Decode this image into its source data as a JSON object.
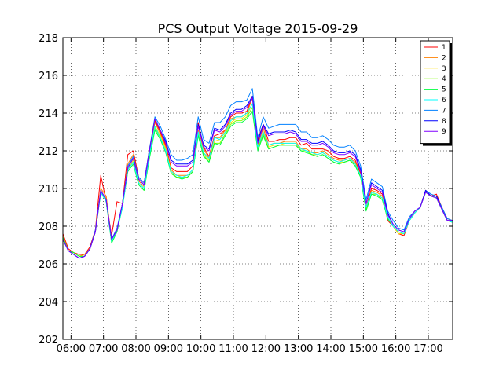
{
  "chart_data": {
    "type": "line",
    "title": "PCS Output Voltage 2015-09-29",
    "xlabel": "",
    "ylabel": "",
    "ylim": [
      202,
      218
    ],
    "yticks": [
      202,
      204,
      206,
      208,
      210,
      212,
      214,
      216,
      218
    ],
    "xlim": [
      "05:45",
      "17:45"
    ],
    "xticks": [
      "06:00",
      "07:00",
      "08:00",
      "09:00",
      "10:00",
      "11:00",
      "12:00",
      "13:00",
      "14:00",
      "15:00",
      "16:00",
      "17:00"
    ],
    "grid": true,
    "legend_position": "top-right",
    "x": [
      "05:45",
      "05:55",
      "06:05",
      "06:15",
      "06:25",
      "06:35",
      "06:45",
      "06:55",
      "07:05",
      "07:15",
      "07:25",
      "07:35",
      "07:45",
      "07:55",
      "08:05",
      "08:15",
      "08:25",
      "08:35",
      "08:45",
      "08:55",
      "09:05",
      "09:15",
      "09:25",
      "09:35",
      "09:45",
      "09:55",
      "10:05",
      "10:15",
      "10:25",
      "10:35",
      "10:45",
      "10:55",
      "11:05",
      "11:15",
      "11:25",
      "11:35",
      "11:45",
      "11:55",
      "12:05",
      "12:15",
      "12:25",
      "12:35",
      "12:45",
      "12:55",
      "13:05",
      "13:15",
      "13:25",
      "13:35",
      "13:45",
      "13:55",
      "14:05",
      "14:15",
      "14:25",
      "14:35",
      "14:45",
      "14:55",
      "15:05",
      "15:15",
      "15:25",
      "15:35",
      "15:45",
      "15:55",
      "16:05",
      "16:15",
      "16:25",
      "16:35",
      "16:45",
      "16:55",
      "17:05",
      "17:15",
      "17:25",
      "17:35",
      "17:45"
    ],
    "series": [
      {
        "name": "1",
        "color": "#ff0000",
        "values": [
          207.6,
          206.8,
          206.6,
          206.5,
          206.5,
          206.9,
          207.8,
          210.7,
          209.3,
          207.5,
          209.3,
          209.2,
          211.8,
          212.0,
          210.6,
          210.3,
          212.1,
          213.6,
          213.0,
          212.3,
          211.1,
          210.9,
          210.9,
          210.9,
          211.2,
          213.5,
          212.2,
          211.7,
          212.8,
          212.9,
          213.1,
          213.8,
          214.0,
          214.0,
          214.1,
          214.9,
          212.6,
          213.4,
          212.5,
          212.5,
          212.6,
          212.6,
          212.7,
          212.7,
          212.3,
          212.4,
          212.1,
          212.1,
          212.1,
          212.0,
          211.7,
          211.6,
          211.6,
          211.7,
          211.5,
          210.8,
          209.0,
          210.0,
          209.9,
          209.7,
          208.3,
          208.0,
          207.6,
          207.5,
          208.3,
          208.7,
          209.0,
          209.9,
          209.6,
          209.7,
          209.0,
          208.4,
          208.3
        ]
      },
      {
        "name": "2",
        "color": "#ff8000",
        "values": [
          207.5,
          206.7,
          206.6,
          206.4,
          206.5,
          206.8,
          207.7,
          210.0,
          209.6,
          207.3,
          207.8,
          209.2,
          211.3,
          211.8,
          210.4,
          210.1,
          212.0,
          213.5,
          212.9,
          212.2,
          211.0,
          210.7,
          210.7,
          210.7,
          211.0,
          213.1,
          212.1,
          211.6,
          212.7,
          212.7,
          213.1,
          213.7,
          213.8,
          213.8,
          214.0,
          214.8,
          212.3,
          213.2,
          212.3,
          212.4,
          212.4,
          212.5,
          212.5,
          212.5,
          212.1,
          212.1,
          211.9,
          211.9,
          212.0,
          211.8,
          211.6,
          211.5,
          211.5,
          211.6,
          211.4,
          210.7,
          208.9,
          209.9,
          209.8,
          209.6,
          208.4,
          208.0,
          207.6,
          207.6,
          208.3,
          208.7,
          209.0,
          209.9,
          209.6,
          209.6,
          208.9,
          208.3,
          208.3
        ]
      },
      {
        "name": "3",
        "color": "#ffe000",
        "values": [
          207.4,
          206.7,
          206.6,
          206.4,
          206.4,
          206.8,
          207.7,
          209.8,
          209.4,
          207.3,
          207.8,
          209.1,
          211.0,
          211.5,
          210.3,
          210.0,
          211.8,
          213.3,
          212.8,
          212.1,
          210.9,
          210.6,
          210.6,
          210.6,
          210.9,
          213.0,
          211.9,
          211.5,
          212.5,
          212.6,
          213.0,
          213.5,
          213.7,
          213.7,
          213.9,
          214.5,
          212.2,
          213.0,
          212.2,
          212.3,
          212.3,
          212.4,
          212.4,
          212.4,
          212.0,
          212.0,
          211.8,
          211.8,
          211.9,
          211.7,
          211.5,
          211.4,
          211.4,
          211.5,
          211.3,
          210.6,
          208.9,
          209.8,
          209.7,
          209.5,
          208.4,
          208.0,
          207.6,
          207.6,
          208.3,
          208.7,
          209.0,
          209.8,
          209.6,
          209.5,
          208.9,
          208.3,
          208.2
        ]
      },
      {
        "name": "4",
        "color": "#80ff00",
        "values": [
          207.4,
          206.7,
          206.6,
          206.4,
          206.4,
          206.8,
          207.7,
          209.8,
          209.3,
          207.2,
          207.8,
          209.0,
          211.0,
          211.4,
          210.2,
          209.9,
          211.7,
          213.2,
          212.7,
          212.0,
          210.8,
          210.6,
          210.6,
          210.6,
          210.9,
          212.9,
          211.8,
          211.4,
          212.4,
          212.4,
          212.9,
          213.4,
          213.6,
          213.6,
          213.8,
          214.3,
          212.1,
          212.9,
          212.1,
          212.2,
          212.3,
          212.3,
          212.3,
          212.3,
          212.0,
          212.0,
          211.8,
          211.7,
          211.8,
          211.6,
          211.4,
          211.3,
          211.4,
          211.5,
          211.2,
          210.6,
          208.9,
          209.7,
          209.7,
          209.4,
          208.4,
          208.0,
          207.7,
          207.6,
          208.3,
          208.7,
          209.0,
          209.8,
          209.6,
          209.5,
          208.9,
          208.3,
          208.2
        ]
      },
      {
        "name": "5",
        "color": "#00ff40",
        "values": [
          207.4,
          206.7,
          206.6,
          206.4,
          206.4,
          206.8,
          207.7,
          209.8,
          209.3,
          207.1,
          207.7,
          209.0,
          210.9,
          211.3,
          210.2,
          209.9,
          211.6,
          213.1,
          212.6,
          211.9,
          210.8,
          210.6,
          210.5,
          210.6,
          210.9,
          212.8,
          211.7,
          211.4,
          212.4,
          212.3,
          212.8,
          213.3,
          213.5,
          213.5,
          213.7,
          214.1,
          212.0,
          212.8,
          212.1,
          212.2,
          212.3,
          212.3,
          212.3,
          212.3,
          212.0,
          211.9,
          211.8,
          211.7,
          211.8,
          211.6,
          211.4,
          211.3,
          211.4,
          211.5,
          211.2,
          210.6,
          208.8,
          209.7,
          209.6,
          209.4,
          208.4,
          208.0,
          207.7,
          207.6,
          208.3,
          208.7,
          209.0,
          209.8,
          209.6,
          209.5,
          208.9,
          208.3,
          208.2
        ]
      },
      {
        "name": "6",
        "color": "#00ffff",
        "values": [
          207.3,
          206.7,
          206.5,
          206.3,
          206.4,
          206.8,
          207.7,
          209.8,
          209.3,
          207.2,
          207.8,
          209.0,
          211.0,
          211.4,
          210.3,
          210.0,
          211.8,
          213.3,
          212.7,
          212.0,
          210.9,
          210.7,
          210.6,
          210.7,
          211.0,
          213.0,
          211.9,
          211.6,
          212.7,
          212.6,
          213.0,
          213.6,
          213.8,
          213.8,
          214.0,
          214.5,
          212.2,
          213.0,
          212.3,
          212.4,
          212.4,
          212.4,
          212.4,
          212.4,
          212.1,
          212.0,
          211.9,
          211.8,
          211.9,
          211.7,
          211.5,
          211.4,
          211.5,
          211.6,
          211.3,
          210.7,
          209.0,
          209.8,
          209.7,
          209.5,
          208.5,
          208.0,
          207.7,
          207.6,
          208.3,
          208.7,
          209.0,
          209.8,
          209.6,
          209.5,
          208.9,
          208.3,
          208.2
        ]
      },
      {
        "name": "7",
        "color": "#0080ff",
        "values": [
          207.3,
          206.7,
          206.5,
          206.3,
          206.4,
          206.8,
          207.8,
          209.9,
          209.4,
          207.3,
          207.9,
          209.2,
          211.2,
          211.7,
          210.6,
          210.3,
          212.1,
          213.8,
          213.3,
          212.6,
          211.8,
          211.5,
          211.5,
          211.6,
          211.8,
          213.8,
          212.6,
          212.4,
          213.5,
          213.5,
          213.8,
          214.4,
          214.6,
          214.6,
          214.7,
          215.3,
          212.7,
          213.8,
          213.2,
          213.3,
          213.4,
          213.4,
          213.4,
          213.4,
          213.0,
          213.0,
          212.7,
          212.7,
          212.8,
          212.6,
          212.3,
          212.2,
          212.2,
          212.3,
          212.0,
          211.2,
          209.4,
          210.5,
          210.3,
          210.1,
          208.8,
          208.3,
          207.9,
          207.8,
          208.5,
          208.8,
          209.0,
          209.9,
          209.7,
          209.6,
          209.0,
          208.4,
          208.3
        ]
      },
      {
        "name": "8",
        "color": "#0000ff",
        "values": [
          207.3,
          206.7,
          206.5,
          206.3,
          206.4,
          206.8,
          207.7,
          209.9,
          209.4,
          207.3,
          207.8,
          209.2,
          211.1,
          211.6,
          210.5,
          210.2,
          212.0,
          213.7,
          213.1,
          212.5,
          211.5,
          211.3,
          211.3,
          211.3,
          211.5,
          213.4,
          212.3,
          212.1,
          213.2,
          213.1,
          213.4,
          214.0,
          214.2,
          214.2,
          214.4,
          214.9,
          212.5,
          213.4,
          212.9,
          213.0,
          213.0,
          213.0,
          213.1,
          213.0,
          212.6,
          212.6,
          212.4,
          212.4,
          212.5,
          212.3,
          212.0,
          211.9,
          211.9,
          212.0,
          211.8,
          211.0,
          209.2,
          210.3,
          210.1,
          209.9,
          208.7,
          208.1,
          207.8,
          207.7,
          208.4,
          208.8,
          209.0,
          209.9,
          209.6,
          209.6,
          208.9,
          208.3,
          208.3
        ]
      },
      {
        "name": "9",
        "color": "#8000ff",
        "values": [
          207.3,
          206.7,
          206.5,
          206.3,
          206.4,
          206.8,
          207.7,
          209.9,
          209.4,
          207.3,
          207.8,
          209.2,
          211.1,
          211.6,
          210.5,
          210.2,
          212.0,
          213.7,
          213.1,
          212.4,
          211.4,
          211.2,
          211.2,
          211.2,
          211.4,
          213.3,
          212.2,
          212.0,
          213.1,
          213.0,
          213.3,
          213.9,
          214.1,
          214.1,
          214.3,
          214.8,
          212.4,
          213.3,
          212.8,
          212.9,
          212.9,
          212.9,
          213.0,
          212.9,
          212.5,
          212.5,
          212.3,
          212.3,
          212.4,
          212.2,
          211.9,
          211.8,
          211.8,
          211.9,
          211.7,
          210.9,
          209.2,
          210.2,
          210.0,
          209.8,
          208.6,
          208.1,
          207.8,
          207.7,
          208.4,
          208.8,
          209.0,
          209.8,
          209.6,
          209.5,
          208.9,
          208.3,
          208.3
        ]
      }
    ]
  }
}
